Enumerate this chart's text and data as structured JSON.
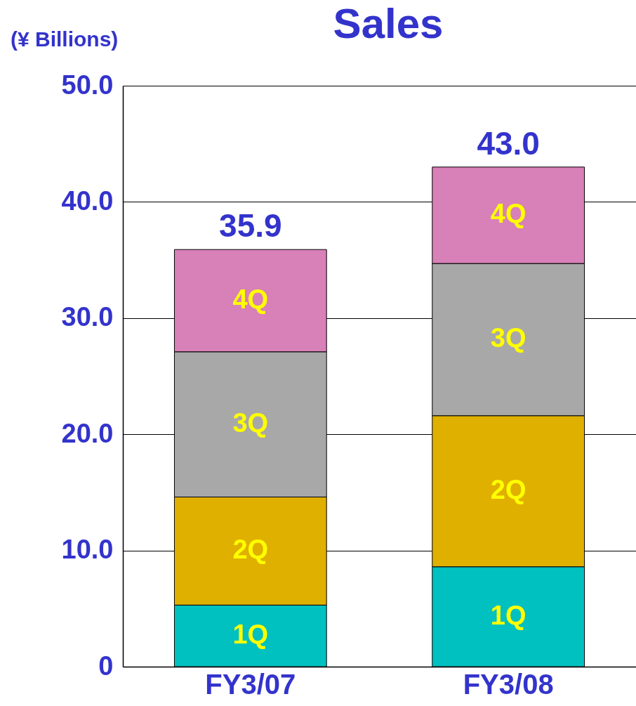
{
  "chart_data": {
    "type": "bar",
    "title": "Sales",
    "ylabel": "(¥ Billions)",
    "categories": [
      "FY3/07",
      "FY3/08"
    ],
    "stacked": true,
    "series": [
      {
        "name": "1Q",
        "color": "#00c0c0",
        "values": [
          5.3,
          8.6
        ]
      },
      {
        "name": "2Q",
        "color": "#e0b000",
        "values": [
          9.3,
          13.0
        ]
      },
      {
        "name": "3Q",
        "color": "#a8a8a8",
        "values": [
          12.5,
          13.1
        ]
      },
      {
        "name": "4Q",
        "color": "#d880b8",
        "values": [
          8.8,
          8.3
        ]
      }
    ],
    "totals": [
      "35.9",
      "43.0"
    ],
    "ylim": [
      0,
      50
    ],
    "yticks": [
      0,
      {
        "value": 10,
        "label": "10.0"
      },
      {
        "value": 20,
        "label": "20.0"
      },
      {
        "value": 30,
        "label": "30.0"
      },
      {
        "value": 40,
        "label": "40.0"
      },
      {
        "value": 50,
        "label": "50.0"
      }
    ],
    "grid": "y",
    "legend": false
  }
}
